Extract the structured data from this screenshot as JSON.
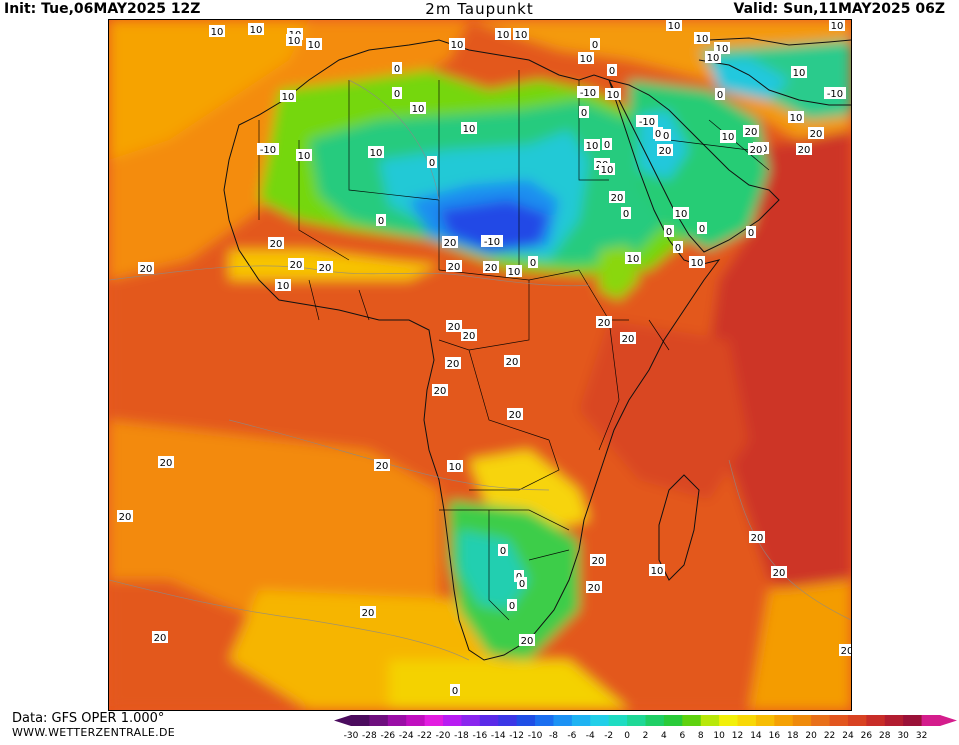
{
  "header": {
    "init": "Init: Tue,06MAY2025 12Z",
    "title": "2m Taupunkt",
    "valid": "Valid: Sun,11MAY2025 06Z"
  },
  "footer": {
    "source": "Data: GFS OPER 1.000°",
    "url": "WWW.WETTERZENTRALE.DE"
  },
  "legend": {
    "ticks": [
      "-30",
      "-28",
      "-26",
      "-24",
      "-22",
      "-20",
      "-18",
      "-16",
      "-14",
      "-12",
      "-10",
      "-8",
      "-6",
      "-4",
      "-2",
      "0",
      "2",
      "4",
      "6",
      "8",
      "10",
      "12",
      "14",
      "16",
      "18",
      "20",
      "22",
      "24",
      "26",
      "28",
      "30",
      "32"
    ],
    "colors": [
      "#4b0c5e",
      "#6e0f7e",
      "#9a0ea6",
      "#c00fbf",
      "#e21de0",
      "#b81cf2",
      "#8a26ee",
      "#5a2ae8",
      "#3b37e6",
      "#1f4fe6",
      "#1b6ff0",
      "#1c92f4",
      "#1fb3f2",
      "#22cfe8",
      "#1fdcc2",
      "#1fd896",
      "#20cf66",
      "#2acb3a",
      "#5fd20f",
      "#b8e80a",
      "#f2f00a",
      "#f8d806",
      "#f7bd04",
      "#f5a104",
      "#ef8a0b",
      "#e8701a",
      "#e2561f",
      "#d84222",
      "#c82d28",
      "#b21d30",
      "#9a1138",
      "#d41d8c"
    ]
  },
  "map": {
    "contour_labels": [
      "10",
      "10",
      "10",
      "10",
      "10",
      "10",
      "10",
      "10",
      "0",
      "10",
      "10",
      "10",
      "10",
      "10",
      "10",
      "0",
      "0",
      "10",
      "10",
      "10",
      "0",
      "0",
      "0",
      "-10",
      "10",
      "0",
      "10",
      "-10",
      "-10",
      "10",
      "0",
      "20",
      "-10",
      "0",
      "20",
      "20",
      "10",
      "20",
      "0",
      "10",
      "0",
      "0",
      "0",
      "10",
      "10",
      "20",
      "10",
      "10",
      "20",
      "-10",
      "10",
      "20",
      "20",
      "20",
      "20",
      "10",
      "20",
      "20",
      "20",
      "20",
      "20",
      "20",
      "20",
      "20",
      "20",
      "20",
      "20",
      "20",
      "20",
      "20",
      "20",
      "10",
      "20",
      "20",
      "10",
      "0",
      "0",
      "0",
      "0",
      "0",
      "20",
      "20",
      "20",
      "20",
      "10",
      "10",
      "10",
      "0",
      "10",
      "0",
      "20",
      "20",
      "10",
      "0",
      "0"
    ]
  }
}
